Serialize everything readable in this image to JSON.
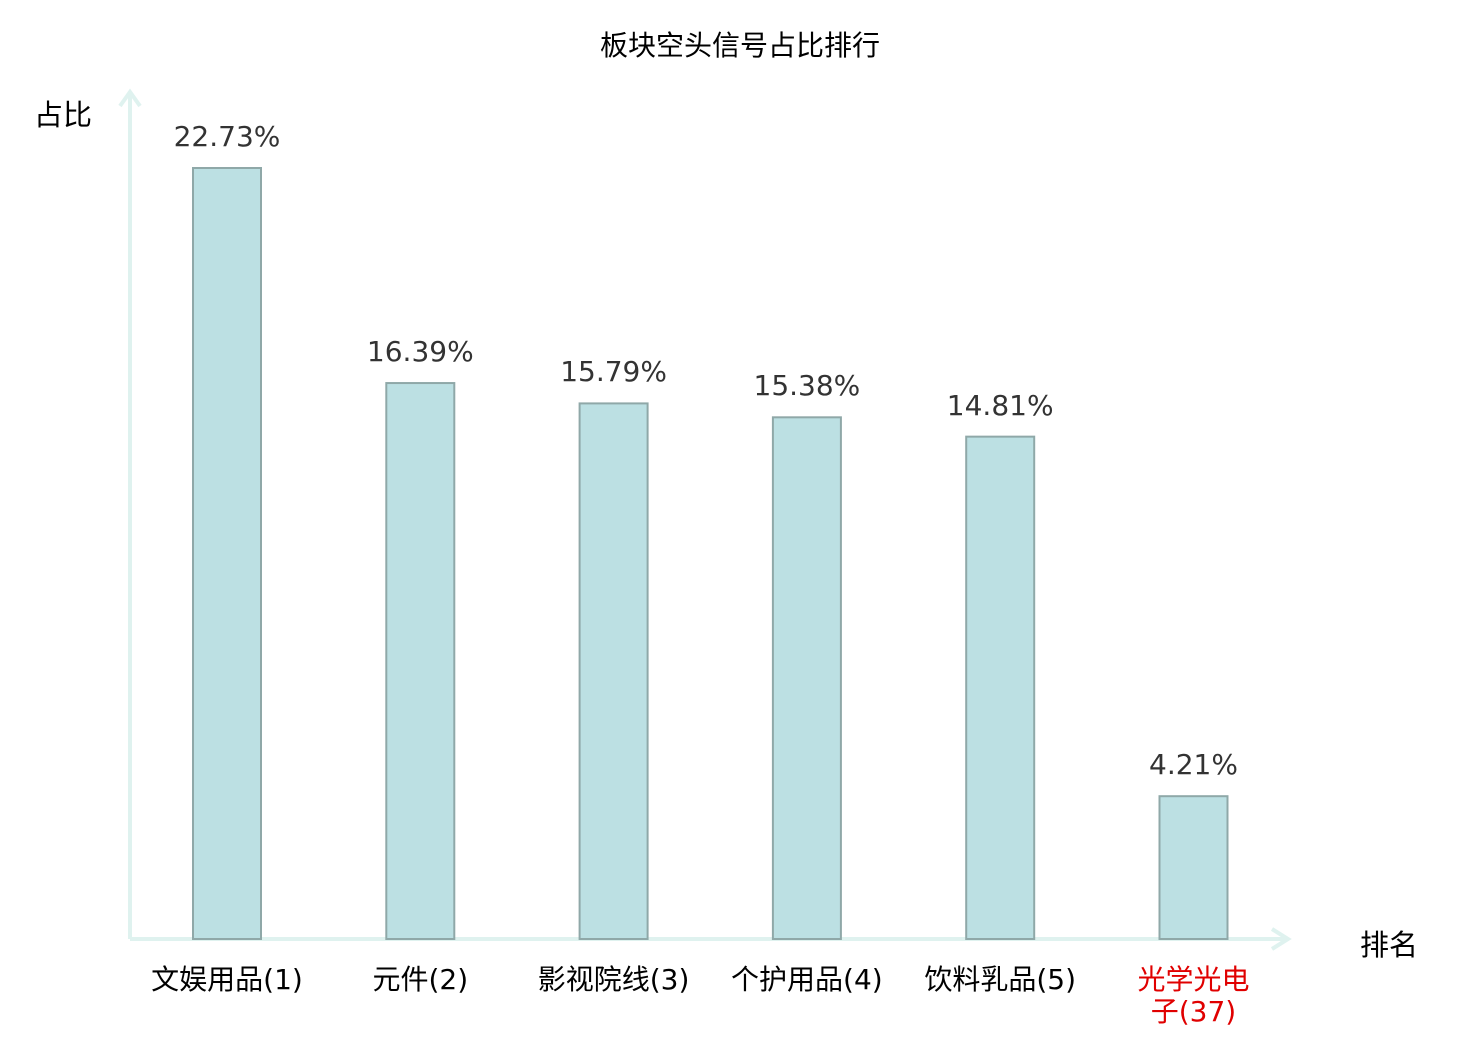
{
  "chart_data": {
    "type": "bar",
    "title": "板块空头信号占比排行",
    "xlabel": "排名",
    "ylabel": "占比",
    "categories": [
      "文娱用品(1)",
      "元件(2)",
      "影视院线(3)",
      "个护用品(4)",
      "饮料乳品(5)",
      "光学光电子(37)"
    ],
    "values": [
      22.73,
      16.39,
      15.79,
      15.38,
      14.81,
      4.21
    ],
    "data_labels": [
      "22.73%",
      "16.39%",
      "15.79%",
      "15.38%",
      "14.81%",
      "4.21%"
    ],
    "highlighted_category": "光学光电子(37)",
    "ylim": [
      0,
      25
    ],
    "grid": false,
    "colors": {
      "bar_fill": "#bce0e3",
      "bar_stroke": "#8fa8a8",
      "axis": "#dff2ef",
      "highlight_label": "#e00000",
      "value_label": "#333333"
    }
  }
}
